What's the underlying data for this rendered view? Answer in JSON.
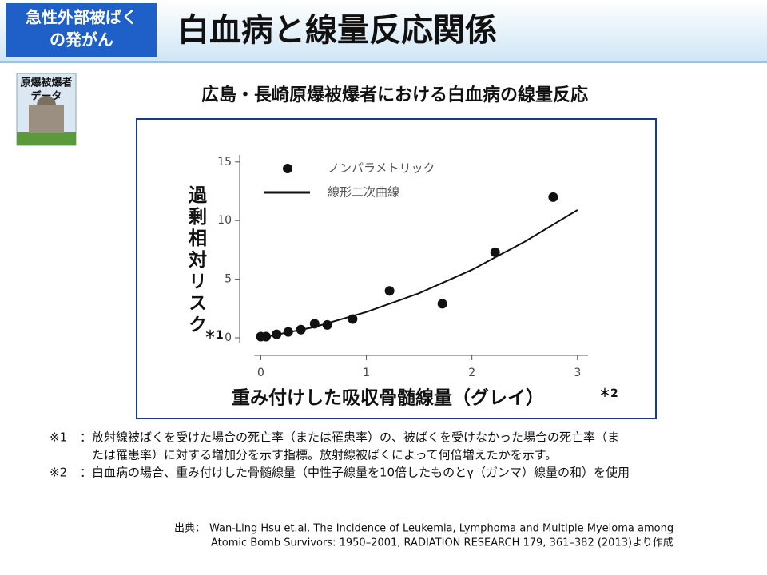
{
  "header": {
    "badge": [
      "急性外部被ばく",
      "の発がん"
    ],
    "title": "白血病と線量反応関係"
  },
  "icon": {
    "label": [
      "原爆被爆者",
      "データ"
    ]
  },
  "chart_data": {
    "type": "scatter",
    "title": "広島・長崎原爆被爆者における白血病の線量反応",
    "ylabel": "過剰相対リスク",
    "ylabel_note": "＊1",
    "xlabel": "重み付けした吸収骨髄線量（グレイ）",
    "xlabel_note": "＊2",
    "xlim": [
      -0.2,
      3.1
    ],
    "ylim": [
      -1.5,
      15.6
    ],
    "xticks": [
      0,
      1,
      2,
      3
    ],
    "yticks": [
      0,
      5,
      10,
      15
    ],
    "grid": false,
    "series": [
      {
        "name": "ノンパラメトリック",
        "type": "scatter",
        "color": "#111111",
        "x": [
          0,
          0.05,
          0.15,
          0.26,
          0.38,
          0.51,
          0.63,
          0.87,
          1.22,
          1.72,
          2.22,
          2.77
        ],
        "values": [
          0.1,
          0.1,
          0.3,
          0.5,
          0.7,
          1.2,
          1.1,
          1.6,
          4.0,
          2.9,
          7.3,
          12.0
        ]
      },
      {
        "name": "線形二次曲線",
        "type": "line",
        "color": "#111111",
        "x": [
          0,
          0.5,
          1,
          1.5,
          2,
          2.5,
          3
        ],
        "values": [
          0,
          0.9,
          2.2,
          3.8,
          5.8,
          8.2,
          10.9
        ]
      }
    ]
  },
  "notes": [
    {
      "mark": "※1",
      "lines": [
        "：放射線被ばくを受けた場合の死亡率（または罹患率）の、被ばくを受けなかった場合の死亡率（ま",
        "たは罹患率）に対する増加分を示す指標。放射線被ばくによって何倍増えたかを示す。"
      ]
    },
    {
      "mark": "※2",
      "lines": [
        "：白血病の場合、重み付けした骨髄線量（中性子線量を10倍したものとγ（ガンマ）線量の和）を使用"
      ]
    }
  ],
  "source": {
    "label": "出典：",
    "lines": [
      "Wan-Ling Hsu et.al. The Incidence of Leukemia, Lymphoma and Multiple Myeloma among",
      "Atomic Bomb Survivors: 1950–2001, RADIATION RESEARCH 179, 361–382 (2013)より作成"
    ]
  }
}
